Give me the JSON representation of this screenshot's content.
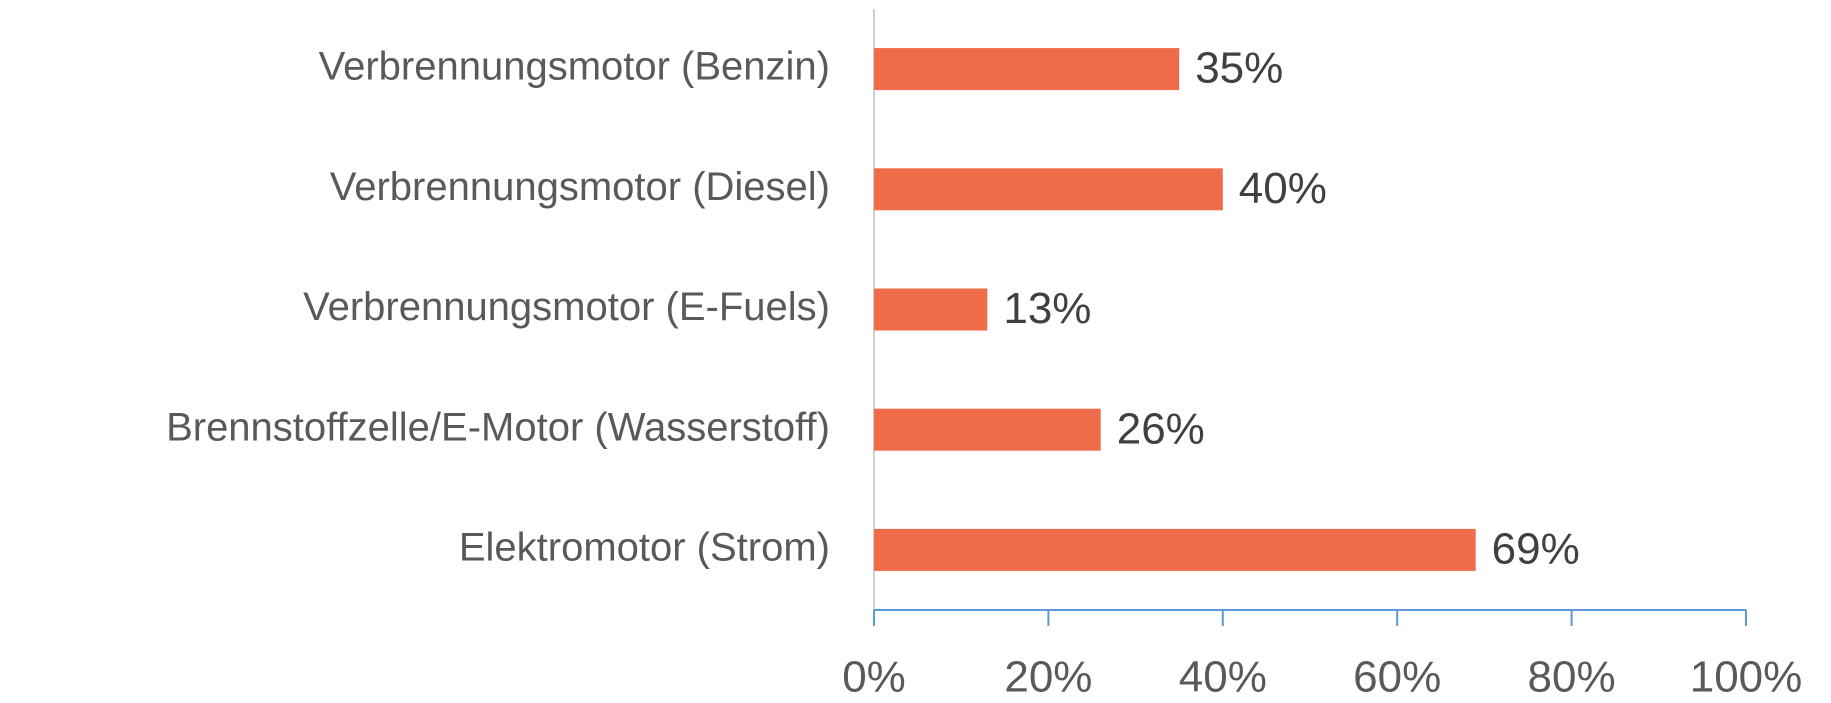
{
  "chart_data": {
    "type": "bar",
    "orientation": "horizontal",
    "categories": [
      "Verbrennungsmotor (Benzin)",
      "Verbrennungsmotor (Diesel)",
      "Verbrennungsmotor (E-Fuels)",
      "Brennstoffzelle/E-Motor (Wasserstoff)",
      "Elektromotor (Strom)"
    ],
    "values": [
      35,
      40,
      13,
      26,
      69
    ],
    "value_labels": [
      "35%",
      "40%",
      "13%",
      "26%",
      "69%"
    ],
    "color": "#ef6c4a",
    "xlim": [
      0,
      100
    ],
    "xticks": [
      {
        "value": 0,
        "label": "0%"
      },
      {
        "value": 20,
        "label": "20%"
      },
      {
        "value": 40,
        "label": "40%"
      },
      {
        "value": 60,
        "label": "60%"
      },
      {
        "value": 80,
        "label": "80%"
      },
      {
        "value": 100,
        "label": "100%"
      }
    ]
  }
}
